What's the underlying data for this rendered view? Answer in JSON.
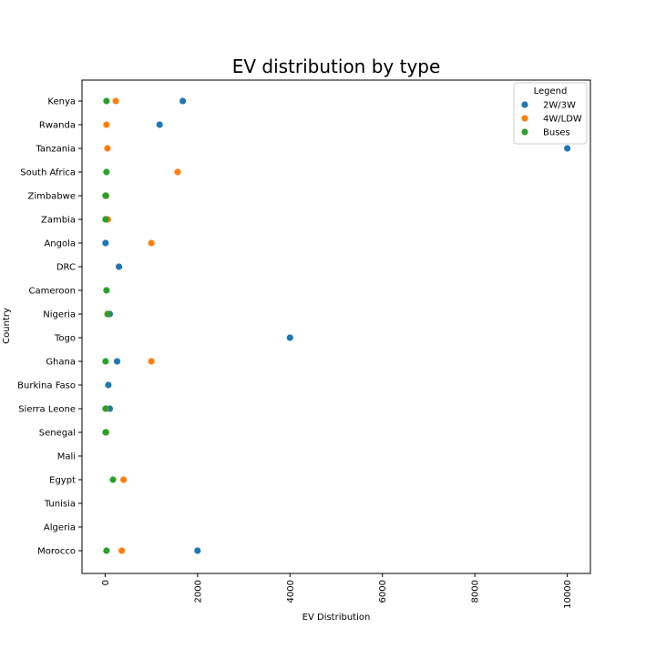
{
  "chart_data": {
    "type": "scatter",
    "title": "EV distribution by type",
    "xlabel": "EV Distribution",
    "ylabel": "Country",
    "xlim": [
      -500,
      10500
    ],
    "xticks": [
      0,
      2000,
      4000,
      6000,
      8000,
      10000
    ],
    "xtick_rotation": 90,
    "categories": [
      "Kenya",
      "Rwanda",
      "Tanzania",
      "South Africa",
      "Zimbabwe",
      "Zambia",
      "Angola",
      "DRC",
      "Cameroon",
      "Nigeria",
      "Togo",
      "Ghana",
      "Burkina Faso ",
      "Sierra Leone",
      "Senegal",
      "Mali",
      "Egypt",
      "Tunisia",
      "Algeria",
      "Morocco"
    ],
    "grid": false,
    "legend": {
      "title": "Legend",
      "placement": "top-right"
    },
    "series": [
      {
        "name": "2W/3W",
        "color": "#1f77b4",
        "values": [
          1680,
          1180,
          10000,
          null,
          20,
          30,
          10,
          300,
          null,
          100,
          4000,
          260,
          70,
          100,
          20,
          null,
          null,
          null,
          null,
          2000
        ]
      },
      {
        "name": "4W/LDW",
        "color": "#ff7f0e",
        "values": [
          230,
          30,
          50,
          1570,
          20,
          60,
          1000,
          null,
          null,
          50,
          null,
          1000,
          null,
          20,
          20,
          null,
          400,
          null,
          null,
          360
        ]
      },
      {
        "name": "Buses",
        "color": "#2ca02c",
        "values": [
          30,
          null,
          null,
          30,
          10,
          10,
          null,
          null,
          30,
          60,
          null,
          10,
          null,
          10,
          10,
          null,
          170,
          null,
          null,
          30
        ]
      }
    ]
  }
}
